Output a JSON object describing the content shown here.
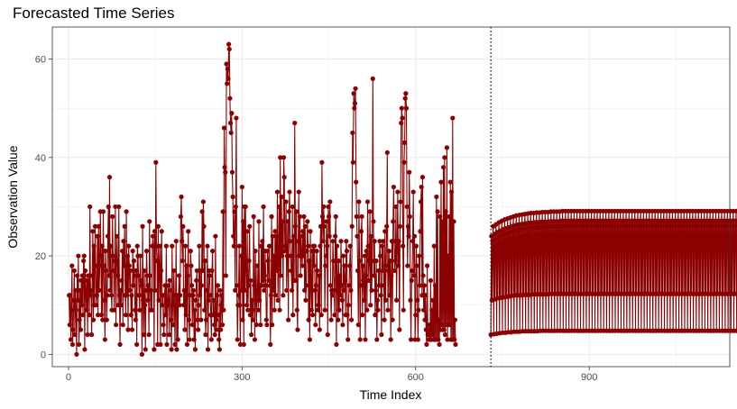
{
  "chart_data": {
    "type": "line",
    "title": "Forecasted Time Series",
    "xlabel": "Time Index",
    "ylabel": "Observation Value",
    "xlim": [
      -28,
      1143
    ],
    "ylim": [
      -2.5,
      66.5
    ],
    "xticks": [
      0,
      300,
      600,
      900
    ],
    "yticks": [
      0,
      20,
      40,
      60
    ],
    "grid": true,
    "vline": {
      "x": 730,
      "style": "dotted"
    },
    "colors": {
      "series": "#8b0000",
      "grid": "#ebebeb",
      "vline": "#000000"
    },
    "series": [
      {
        "x_start": 1,
        "values": [
          12,
          6,
          12,
          3,
          9,
          18,
          2,
          5,
          11,
          17,
          4,
          13,
          9,
          0,
          16,
          11,
          20,
          2,
          7,
          13,
          5,
          15,
          10,
          16,
          8,
          19,
          20,
          1,
          17,
          13,
          9,
          15,
          4,
          16,
          14,
          8,
          30,
          12,
          13,
          4,
          16,
          25,
          7,
          22,
          10,
          26,
          18,
          10,
          12,
          24,
          8,
          26,
          13,
          18,
          29,
          20,
          8,
          22,
          7,
          29,
          18,
          11,
          3,
          21,
          17,
          7,
          12,
          24,
          30,
          16,
          36,
          13,
          22,
          12,
          9,
          28,
          20,
          17,
          9,
          19,
          30,
          6,
          19,
          24,
          16,
          10,
          30,
          12,
          2,
          13,
          10,
          15,
          21,
          6,
          23,
          18,
          26,
          12,
          8,
          29,
          12,
          20,
          5,
          22,
          18,
          13,
          17,
          8,
          12,
          5,
          21,
          14,
          19,
          16,
          9,
          7,
          17,
          2,
          22,
          20,
          16,
          12,
          9,
          20,
          15,
          14,
          0,
          26,
          11,
          4,
          17,
          10,
          1,
          13,
          21,
          16,
          11,
          14,
          4,
          27,
          16,
          9,
          13,
          9,
          22,
          24,
          22,
          1,
          25,
          13,
          39,
          22,
          19,
          2,
          26,
          11,
          18,
          22,
          2,
          17,
          25,
          10,
          12,
          6,
          4,
          12,
          14,
          8,
          22,
          2,
          10,
          14,
          11,
          4,
          15,
          13,
          7,
          1,
          22,
          10,
          6,
          17,
          12,
          2,
          10,
          23,
          1,
          12,
          3,
          11,
          16,
          10,
          12,
          28,
          32,
          23,
          19,
          26,
          10,
          13,
          5,
          22,
          8,
          18,
          2,
          16,
          25,
          7,
          3,
          12,
          21,
          18,
          14,
          6,
          12,
          13,
          3,
          9,
          1,
          11,
          15,
          17,
          7,
          5,
          10,
          22,
          12,
          17,
          7,
          14,
          29,
          17,
          31,
          26,
          9,
          19,
          4,
          7,
          13,
          22,
          1,
          11,
          17,
          16,
          12,
          8,
          3,
          17,
          21,
          8,
          11,
          6,
          4,
          24,
          7,
          5,
          12,
          14,
          8,
          3,
          1,
          13,
          5,
          10,
          12,
          6,
          29,
          9,
          46,
          38,
          37,
          16,
          59,
          55,
          58,
          56,
          63,
          62,
          52,
          47,
          45,
          49,
          37,
          32,
          24,
          22,
          29,
          13,
          30,
          48,
          14,
          3,
          10,
          12,
          22,
          10,
          2,
          20,
          13,
          34,
          7,
          27,
          2,
          30,
          13,
          30,
          17,
          10,
          25,
          9,
          14,
          19,
          26,
          8,
          15,
          4,
          11,
          9,
          7,
          28,
          14,
          3,
          21,
          11,
          6,
          18,
          13,
          9,
          27,
          11,
          14,
          6,
          22,
          14,
          23,
          15,
          30,
          13,
          16,
          21,
          14,
          7,
          6,
          21,
          19,
          15,
          22,
          14,
          2,
          12,
          28,
          6,
          24,
          13,
          20,
          9,
          25,
          12,
          24,
          17,
          33,
          11,
          20,
          30,
          9,
          40,
          16,
          32,
          20,
          27,
          12,
          40,
          36,
          21,
          22,
          31,
          13,
          20,
          27,
          7,
          29,
          33,
          23,
          20,
          17,
          13,
          30,
          8,
          24,
          15,
          47,
          26,
          15,
          29,
          9,
          5,
          23,
          33,
          20,
          28,
          16,
          24,
          20,
          18,
          25,
          20,
          28,
          13,
          26,
          11,
          14,
          21,
          27,
          22,
          7,
          19,
          3,
          25,
          14,
          9,
          21,
          8,
          22,
          18,
          22,
          13,
          6,
          14,
          21,
          17,
          9,
          10,
          16,
          5,
          22,
          26,
          8,
          39,
          28,
          23,
          30,
          26,
          9,
          18,
          20,
          27,
          22,
          4,
          30,
          28,
          24,
          31,
          14,
          7,
          13,
          12,
          23,
          19,
          13,
          8,
          24,
          28,
          2,
          22,
          15,
          7,
          19,
          9,
          16,
          12,
          23,
          14,
          11,
          6,
          20,
          13,
          18,
          15,
          8,
          23,
          21,
          8,
          3,
          10,
          14,
          18,
          22,
          13,
          7,
          26,
          45,
          39,
          53,
          50,
          51,
          54,
          35,
          28,
          24,
          17,
          6,
          31,
          19,
          3,
          14,
          25,
          28,
          8,
          18,
          15,
          11,
          20,
          3,
          16,
          21,
          9,
          31,
          22,
          15,
          19,
          29,
          10,
          24,
          13,
          19,
          56,
          27,
          16,
          23,
          8,
          13,
          19,
          3,
          11,
          9,
          17,
          14,
          23,
          20,
          12,
          4,
          22,
          17,
          23,
          14,
          7,
          25,
          11,
          18,
          26,
          41,
          9,
          17,
          21,
          12,
          19,
          3,
          16,
          23,
          7,
          27,
          34,
          23,
          17,
          19,
          30,
          11,
          21,
          33,
          18,
          23,
          5,
          26,
          31,
          47,
          50,
          48,
          22,
          9,
          39,
          43,
          52,
          53,
          50,
          30,
          18,
          26,
          24,
          37,
          28,
          11,
          3,
          15,
          17,
          23,
          33,
          16,
          24,
          3,
          8,
          22,
          18,
          11,
          3,
          9,
          20,
          14,
          25,
          31,
          34,
          12,
          36,
          16,
          9,
          14,
          7,
          12,
          5,
          2,
          18,
          4,
          5,
          3,
          6,
          3,
          15,
          3,
          9,
          4,
          11,
          3,
          22,
          3,
          14,
          3,
          32,
          3,
          29,
          3,
          7,
          2,
          28,
          5,
          35,
          6,
          27,
          5,
          38,
          5,
          40,
          4,
          29,
          6,
          42,
          3,
          20,
          6,
          28,
          6,
          35,
          3,
          33,
          3,
          48,
          3,
          27,
          3,
          7,
          2
        ]
      },
      {
        "x_start": 730,
        "forecast": true,
        "values": [
          4.0,
          24.0,
          11.0,
          23.0,
          26.0,
          4.1,
          24.4,
          11.2,
          23.4,
          26.4,
          4.2,
          24.8,
          11.4,
          23.8,
          26.8,
          4.3,
          25.1,
          11.5,
          24.1,
          27.1,
          4.4,
          25.4,
          11.6,
          24.4,
          27.4,
          4.4,
          25.6,
          11.7,
          24.6,
          27.6,
          4.5,
          25.8,
          11.8,
          24.8,
          27.8,
          4.5,
          26.0,
          11.9,
          25.0,
          28.0,
          4.6,
          26.2,
          12.0,
          25.2,
          28.2,
          4.6,
          26.3,
          12.0,
          25.3,
          28.3,
          4.6,
          26.4,
          12.0,
          25.4,
          28.4,
          4.7,
          26.5,
          12.1,
          25.5,
          28.5,
          4.7,
          26.6,
          12.1,
          25.6,
          28.6,
          4.7,
          26.7,
          12.1,
          25.7,
          28.7,
          4.7,
          26.7,
          12.2,
          25.7,
          28.7,
          4.7,
          26.8,
          12.2,
          25.8,
          28.8,
          4.7,
          26.8,
          12.2,
          25.8,
          28.8,
          4.8,
          26.9,
          12.2,
          25.9,
          28.9,
          4.8,
          26.9,
          12.2,
          25.9,
          28.9,
          4.8,
          26.9,
          12.2,
          25.9,
          28.9,
          4.8,
          27.0,
          12.3,
          26.0,
          29.0,
          4.8,
          27.0,
          12.3,
          26.0,
          29.0,
          4.8,
          27.0,
          12.3,
          26.0,
          29.0,
          4.8,
          27.0,
          12.3,
          26.0,
          29.0,
          4.8,
          27.1,
          12.3,
          26.1,
          29.1,
          4.8,
          27.1,
          12.3,
          26.1,
          29.1,
          4.8,
          27.1,
          12.3,
          26.1,
          29.1,
          4.8,
          27.1,
          12.3,
          26.1,
          29.1,
          4.8,
          27.1,
          12.3,
          26.1,
          29.1,
          4.8,
          27.1,
          12.3,
          26.1,
          29.1,
          4.8,
          27.1,
          12.3,
          26.1,
          29.1,
          4.8,
          27.1,
          12.3,
          26.1,
          29.1,
          4.8,
          27.1,
          12.3,
          26.1,
          29.1,
          4.8,
          27.1,
          12.3,
          26.1,
          29.1,
          4.8,
          27.1,
          12.3,
          26.1,
          29.1,
          4.8,
          27.1,
          12.3,
          26.1,
          29.1,
          4.8,
          27.1,
          12.3,
          26.1,
          29.1,
          4.8,
          27.1,
          12.3,
          26.1,
          29.1,
          4.8,
          27.1,
          12.3,
          26.1,
          29.1,
          4.8,
          27.1,
          12.3,
          26.1,
          29.1,
          4.8,
          27.1,
          12.3,
          26.1,
          29.1,
          4.8,
          27.1,
          12.3,
          26.1,
          29.1,
          4.8,
          27.1,
          12.3,
          26.1,
          29.1,
          4.8,
          27.1,
          12.3,
          26.1,
          29.1,
          4.8,
          27.1,
          12.3,
          26.1,
          29.1,
          4.8,
          27.1,
          12.3,
          26.1,
          29.1,
          4.8,
          27.1,
          12.3,
          26.1,
          29.1,
          4.8,
          27.1,
          12.3,
          26.1,
          29.1,
          4.8,
          27.1,
          12.3,
          26.1,
          29.1,
          4.8,
          27.1,
          12.3,
          26.1,
          29.1,
          4.8,
          27.1,
          12.3,
          26.1,
          29.1,
          4.8,
          27.1,
          12.3,
          26.1,
          29.1,
          4.8,
          27.1,
          12.3,
          26.1,
          29.1,
          4.8,
          27.1,
          12.3,
          26.1,
          29.1,
          4.8,
          27.1,
          12.3,
          26.1,
          29.1,
          4.8,
          27.1,
          12.3,
          26.1,
          29.1,
          4.8,
          27.1,
          12.3,
          26.1,
          29.1,
          4.8,
          27.1,
          12.3,
          26.1,
          29.1,
          4.8,
          27.1,
          12.3,
          26.1,
          29.1,
          4.8,
          27.1,
          12.3,
          26.1,
          29.1,
          4.8,
          27.1,
          12.3,
          26.1,
          29.1,
          4.8,
          27.1,
          12.3,
          26.1,
          29.1,
          4.8,
          27.1,
          12.3,
          26.1,
          29.1,
          4.8,
          27.1,
          12.3,
          26.1,
          29.1,
          4.8,
          27.1,
          12.3,
          26.1,
          29.1,
          4.8,
          27.1,
          12.3,
          26.1,
          29.1,
          4.8,
          27.1,
          12.3,
          26.1,
          29.1,
          4.8,
          27.1,
          12.3,
          26.1,
          29.1,
          4.8,
          27.1,
          12.3,
          26.1,
          29.1,
          4.8,
          27.1,
          12.3,
          26.1,
          29.1,
          4.8,
          27.1,
          12.3,
          26.1,
          29.1,
          4.8,
          27.1,
          12.3,
          26.1,
          29.1,
          4.8,
          27.1,
          12.3,
          26.1,
          29.1,
          4.8,
          27.1,
          12.3,
          26.1,
          29.1,
          4.8,
          27.1,
          12.3,
          26.1,
          29.1,
          4.8,
          27.1,
          12.3,
          26.1,
          29.1,
          4.8,
          27.1,
          12.3,
          26.1,
          29.1,
          4.8,
          27.1,
          12.3,
          26.1,
          29.1,
          4.8,
          27.1,
          12.3,
          26.1,
          29.1,
          4.8,
          27.1,
          12.3,
          26.1,
          29.1,
          4.8,
          27.1,
          12.3,
          26.1,
          29.1,
          4.8,
          27.1,
          12.3,
          26.1,
          29.1,
          4.8,
          27.1,
          12.3,
          26.1,
          29.1,
          4.8,
          27.1,
          12.3,
          26.1,
          29.1,
          4.8,
          27.1,
          12.3,
          26.1,
          29.1,
          4.8,
          27.1,
          12.3,
          26.1,
          29.1,
          4.8,
          27.1,
          12.3,
          26.1,
          29.1,
          4.8,
          27.1,
          12.3,
          26.1,
          29.1,
          4.8,
          27.1,
          12.3,
          26.1,
          29.1,
          4.8,
          27.1,
          12.3,
          26.1,
          29.1,
          4.8,
          27.1,
          12.3,
          26.1,
          29.1,
          4.8,
          27.1,
          12.3,
          26.1,
          29.1,
          4.8,
          27.1,
          12.3,
          26.1,
          29.1,
          4.8,
          27.1,
          12.3,
          26.1,
          29.1,
          4.8,
          27.1,
          12.3,
          26.1,
          29.1,
          4.8,
          27.1,
          12.3,
          26.1,
          29.1,
          4.8,
          27.1,
          12.3,
          26.1,
          29.1,
          4.8,
          27.1,
          12.3,
          26.1,
          29.1
        ]
      }
    ]
  }
}
